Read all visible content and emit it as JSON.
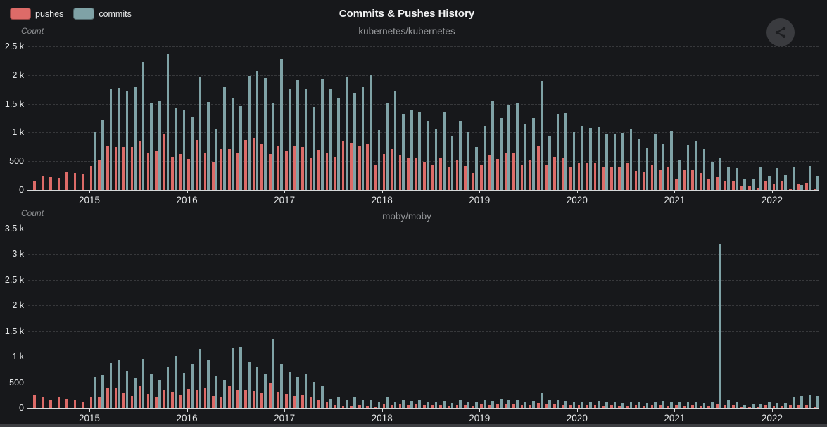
{
  "header": {
    "title": "Commits & Pushes History",
    "legend": [
      {
        "label": "pushes",
        "color": "#dd6b68"
      },
      {
        "label": "commits",
        "color": "#7fa2a6"
      }
    ]
  },
  "colors": {
    "background": "#17181b",
    "pushes": "#dd6b68",
    "commits": "#7fa2a6",
    "grid": "rgba(255,255,255,0.14)",
    "axis": "#d6d8d9",
    "tick_text": "#e4e6e7",
    "muted_text": "#97999c"
  },
  "share_button": {
    "icon": "share-icon"
  },
  "chart_data": [
    {
      "type": "bar",
      "title": "kubernetes/kubernetes",
      "ylabel": "Count",
      "ylim": [
        0,
        2500
      ],
      "yticks": [
        "0",
        "500",
        "1 k",
        "1.5 k",
        "2 k",
        "2.5 k"
      ],
      "xticks": [
        "2015",
        "2016",
        "2017",
        "2018",
        "2019",
        "2020",
        "2021",
        "2022"
      ],
      "grid": "dashed",
      "legend_position": "top-left",
      "categories": [
        "2014-06",
        "2014-07",
        "2014-08",
        "2014-09",
        "2014-10",
        "2014-11",
        "2014-12",
        "2015-01",
        "2015-02",
        "2015-03",
        "2015-04",
        "2015-05",
        "2015-06",
        "2015-07",
        "2015-08",
        "2015-09",
        "2015-10",
        "2015-11",
        "2015-12",
        "2016-01",
        "2016-02",
        "2016-03",
        "2016-04",
        "2016-05",
        "2016-06",
        "2016-07",
        "2016-08",
        "2016-09",
        "2016-10",
        "2016-11",
        "2016-12",
        "2017-01",
        "2017-02",
        "2017-03",
        "2017-04",
        "2017-05",
        "2017-06",
        "2017-07",
        "2017-08",
        "2017-09",
        "2017-10",
        "2017-11",
        "2017-12",
        "2018-01",
        "2018-02",
        "2018-03",
        "2018-04",
        "2018-05",
        "2018-06",
        "2018-07",
        "2018-08",
        "2018-09",
        "2018-10",
        "2018-11",
        "2018-12",
        "2019-01",
        "2019-02",
        "2019-03",
        "2019-04",
        "2019-05",
        "2019-06",
        "2019-07",
        "2019-08",
        "2019-09",
        "2019-10",
        "2019-11",
        "2019-12",
        "2020-01",
        "2020-02",
        "2020-03",
        "2020-04",
        "2020-05",
        "2020-06",
        "2020-07",
        "2020-08",
        "2020-09",
        "2020-10",
        "2020-11",
        "2020-12",
        "2021-01",
        "2021-02",
        "2021-03",
        "2021-04",
        "2021-05",
        "2021-06",
        "2021-07",
        "2021-08",
        "2021-09",
        "2021-10",
        "2021-11",
        "2021-12",
        "2022-01",
        "2022-02",
        "2022-03",
        "2022-04",
        "2022-05",
        "2022-06"
      ],
      "series": [
        {
          "name": "pushes",
          "values": [
            150,
            245,
            225,
            205,
            315,
            295,
            265,
            420,
            510,
            765,
            750,
            750,
            745,
            845,
            650,
            690,
            980,
            575,
            620,
            545,
            870,
            640,
            480,
            715,
            705,
            635,
            865,
            910,
            810,
            620,
            755,
            685,
            760,
            745,
            555,
            700,
            645,
            580,
            855,
            815,
            770,
            810,
            430,
            620,
            705,
            595,
            565,
            560,
            490,
            425,
            555,
            400,
            520,
            420,
            300,
            440,
            615,
            535,
            640,
            635,
            440,
            525,
            755,
            430,
            575,
            555,
            410,
            465,
            465,
            465,
            410,
            400,
            400,
            460,
            335,
            310,
            425,
            350,
            390,
            200,
            350,
            340,
            290,
            180,
            220,
            145,
            155,
            65,
            75,
            35,
            145,
            100,
            155,
            20,
            105,
            125,
            15
          ]
        },
        {
          "name": "commits",
          "values": [
            0,
            0,
            0,
            0,
            0,
            0,
            0,
            1000,
            1210,
            1750,
            1780,
            1720,
            1795,
            2225,
            1505,
            1545,
            2370,
            1435,
            1380,
            1265,
            1975,
            1530,
            1060,
            1785,
            1610,
            1460,
            1990,
            2075,
            1945,
            1520,
            2280,
            1760,
            1915,
            1750,
            1445,
            1935,
            1750,
            1610,
            1975,
            1690,
            1795,
            2005,
            1040,
            1520,
            1720,
            1325,
            1380,
            1355,
            1205,
            1060,
            1355,
            940,
            1205,
            1000,
            745,
            1110,
            1550,
            1255,
            1480,
            1520,
            1155,
            1245,
            1895,
            945,
            1325,
            1345,
            1020,
            1110,
            1075,
            1100,
            980,
            980,
            990,
            1070,
            885,
            725,
            980,
            795,
            1030,
            510,
            785,
            840,
            705,
            480,
            555,
            390,
            380,
            195,
            190,
            400,
            250,
            380,
            260,
            390,
            90,
            420,
            245
          ]
        }
      ]
    },
    {
      "type": "bar",
      "title": "moby/moby",
      "ylabel": "Count",
      "ylim": [
        0,
        3500
      ],
      "yticks": [
        "0",
        "500",
        "1 k",
        "1.5 k",
        "2 k",
        "2.5 k",
        "3 k",
        "3.5 k"
      ],
      "xticks": [
        "2015",
        "2016",
        "2017",
        "2018",
        "2019",
        "2020",
        "2021",
        "2022"
      ],
      "grid": "dashed",
      "categories": [
        "2014-06",
        "2014-07",
        "2014-08",
        "2014-09",
        "2014-10",
        "2014-11",
        "2014-12",
        "2015-01",
        "2015-02",
        "2015-03",
        "2015-04",
        "2015-05",
        "2015-06",
        "2015-07",
        "2015-08",
        "2015-09",
        "2015-10",
        "2015-11",
        "2015-12",
        "2016-01",
        "2016-02",
        "2016-03",
        "2016-04",
        "2016-05",
        "2016-06",
        "2016-07",
        "2016-08",
        "2016-09",
        "2016-10",
        "2016-11",
        "2016-12",
        "2017-01",
        "2017-02",
        "2017-03",
        "2017-04",
        "2017-05",
        "2017-06",
        "2017-07",
        "2017-08",
        "2017-09",
        "2017-10",
        "2017-11",
        "2017-12",
        "2018-01",
        "2018-02",
        "2018-03",
        "2018-04",
        "2018-05",
        "2018-06",
        "2018-07",
        "2018-08",
        "2018-09",
        "2018-10",
        "2018-11",
        "2018-12",
        "2019-01",
        "2019-02",
        "2019-03",
        "2019-04",
        "2019-05",
        "2019-06",
        "2019-07",
        "2019-08",
        "2019-09",
        "2019-10",
        "2019-11",
        "2019-12",
        "2020-01",
        "2020-02",
        "2020-03",
        "2020-04",
        "2020-05",
        "2020-06",
        "2020-07",
        "2020-08",
        "2020-09",
        "2020-10",
        "2020-11",
        "2020-12",
        "2021-01",
        "2021-02",
        "2021-03",
        "2021-04",
        "2021-05",
        "2021-06",
        "2021-07",
        "2021-08",
        "2021-09",
        "2021-10",
        "2021-11",
        "2021-12",
        "2022-01",
        "2022-02",
        "2022-03",
        "2022-04",
        "2022-05",
        "2022-06"
      ],
      "series": [
        {
          "name": "pushes",
          "values": [
            255,
            205,
            145,
            205,
            180,
            170,
            125,
            225,
            210,
            385,
            385,
            305,
            240,
            430,
            270,
            205,
            345,
            315,
            250,
            370,
            340,
            390,
            240,
            210,
            430,
            345,
            350,
            325,
            295,
            480,
            315,
            270,
            235,
            255,
            205,
            170,
            120,
            55,
            45,
            35,
            55,
            35,
            30,
            75,
            60,
            70,
            55,
            65,
            50,
            60,
            55,
            45,
            60,
            50,
            45,
            70,
            60,
            75,
            65,
            70,
            55,
            60,
            90,
            65,
            70,
            60,
            50,
            55,
            50,
            60,
            45,
            50,
            40,
            45,
            55,
            40,
            50,
            55,
            45,
            50,
            45,
            55,
            40,
            45,
            80,
            55,
            50,
            25,
            30,
            30,
            50,
            40,
            35,
            60,
            50,
            55,
            25
          ]
        },
        {
          "name": "commits",
          "values": [
            0,
            0,
            0,
            0,
            0,
            0,
            0,
            610,
            645,
            880,
            930,
            710,
            585,
            960,
            660,
            555,
            810,
            1015,
            685,
            845,
            1150,
            930,
            620,
            550,
            1170,
            1195,
            910,
            810,
            665,
            1340,
            845,
            700,
            610,
            660,
            505,
            430,
            180,
            205,
            165,
            205,
            145,
            170,
            120,
            225,
            130,
            150,
            140,
            160,
            120,
            130,
            140,
            100,
            150,
            130,
            110,
            160,
            140,
            180,
            150,
            170,
            130,
            140,
            300,
            160,
            150,
            140,
            120,
            130,
            120,
            140,
            110,
            120,
            100,
            110,
            130,
            100,
            120,
            140,
            110,
            120,
            110,
            130,
            100,
            110,
            3200,
            150,
            130,
            60,
            80,
            70,
            120,
            100,
            90,
            200,
            230,
            250,
            235
          ]
        }
      ]
    }
  ]
}
